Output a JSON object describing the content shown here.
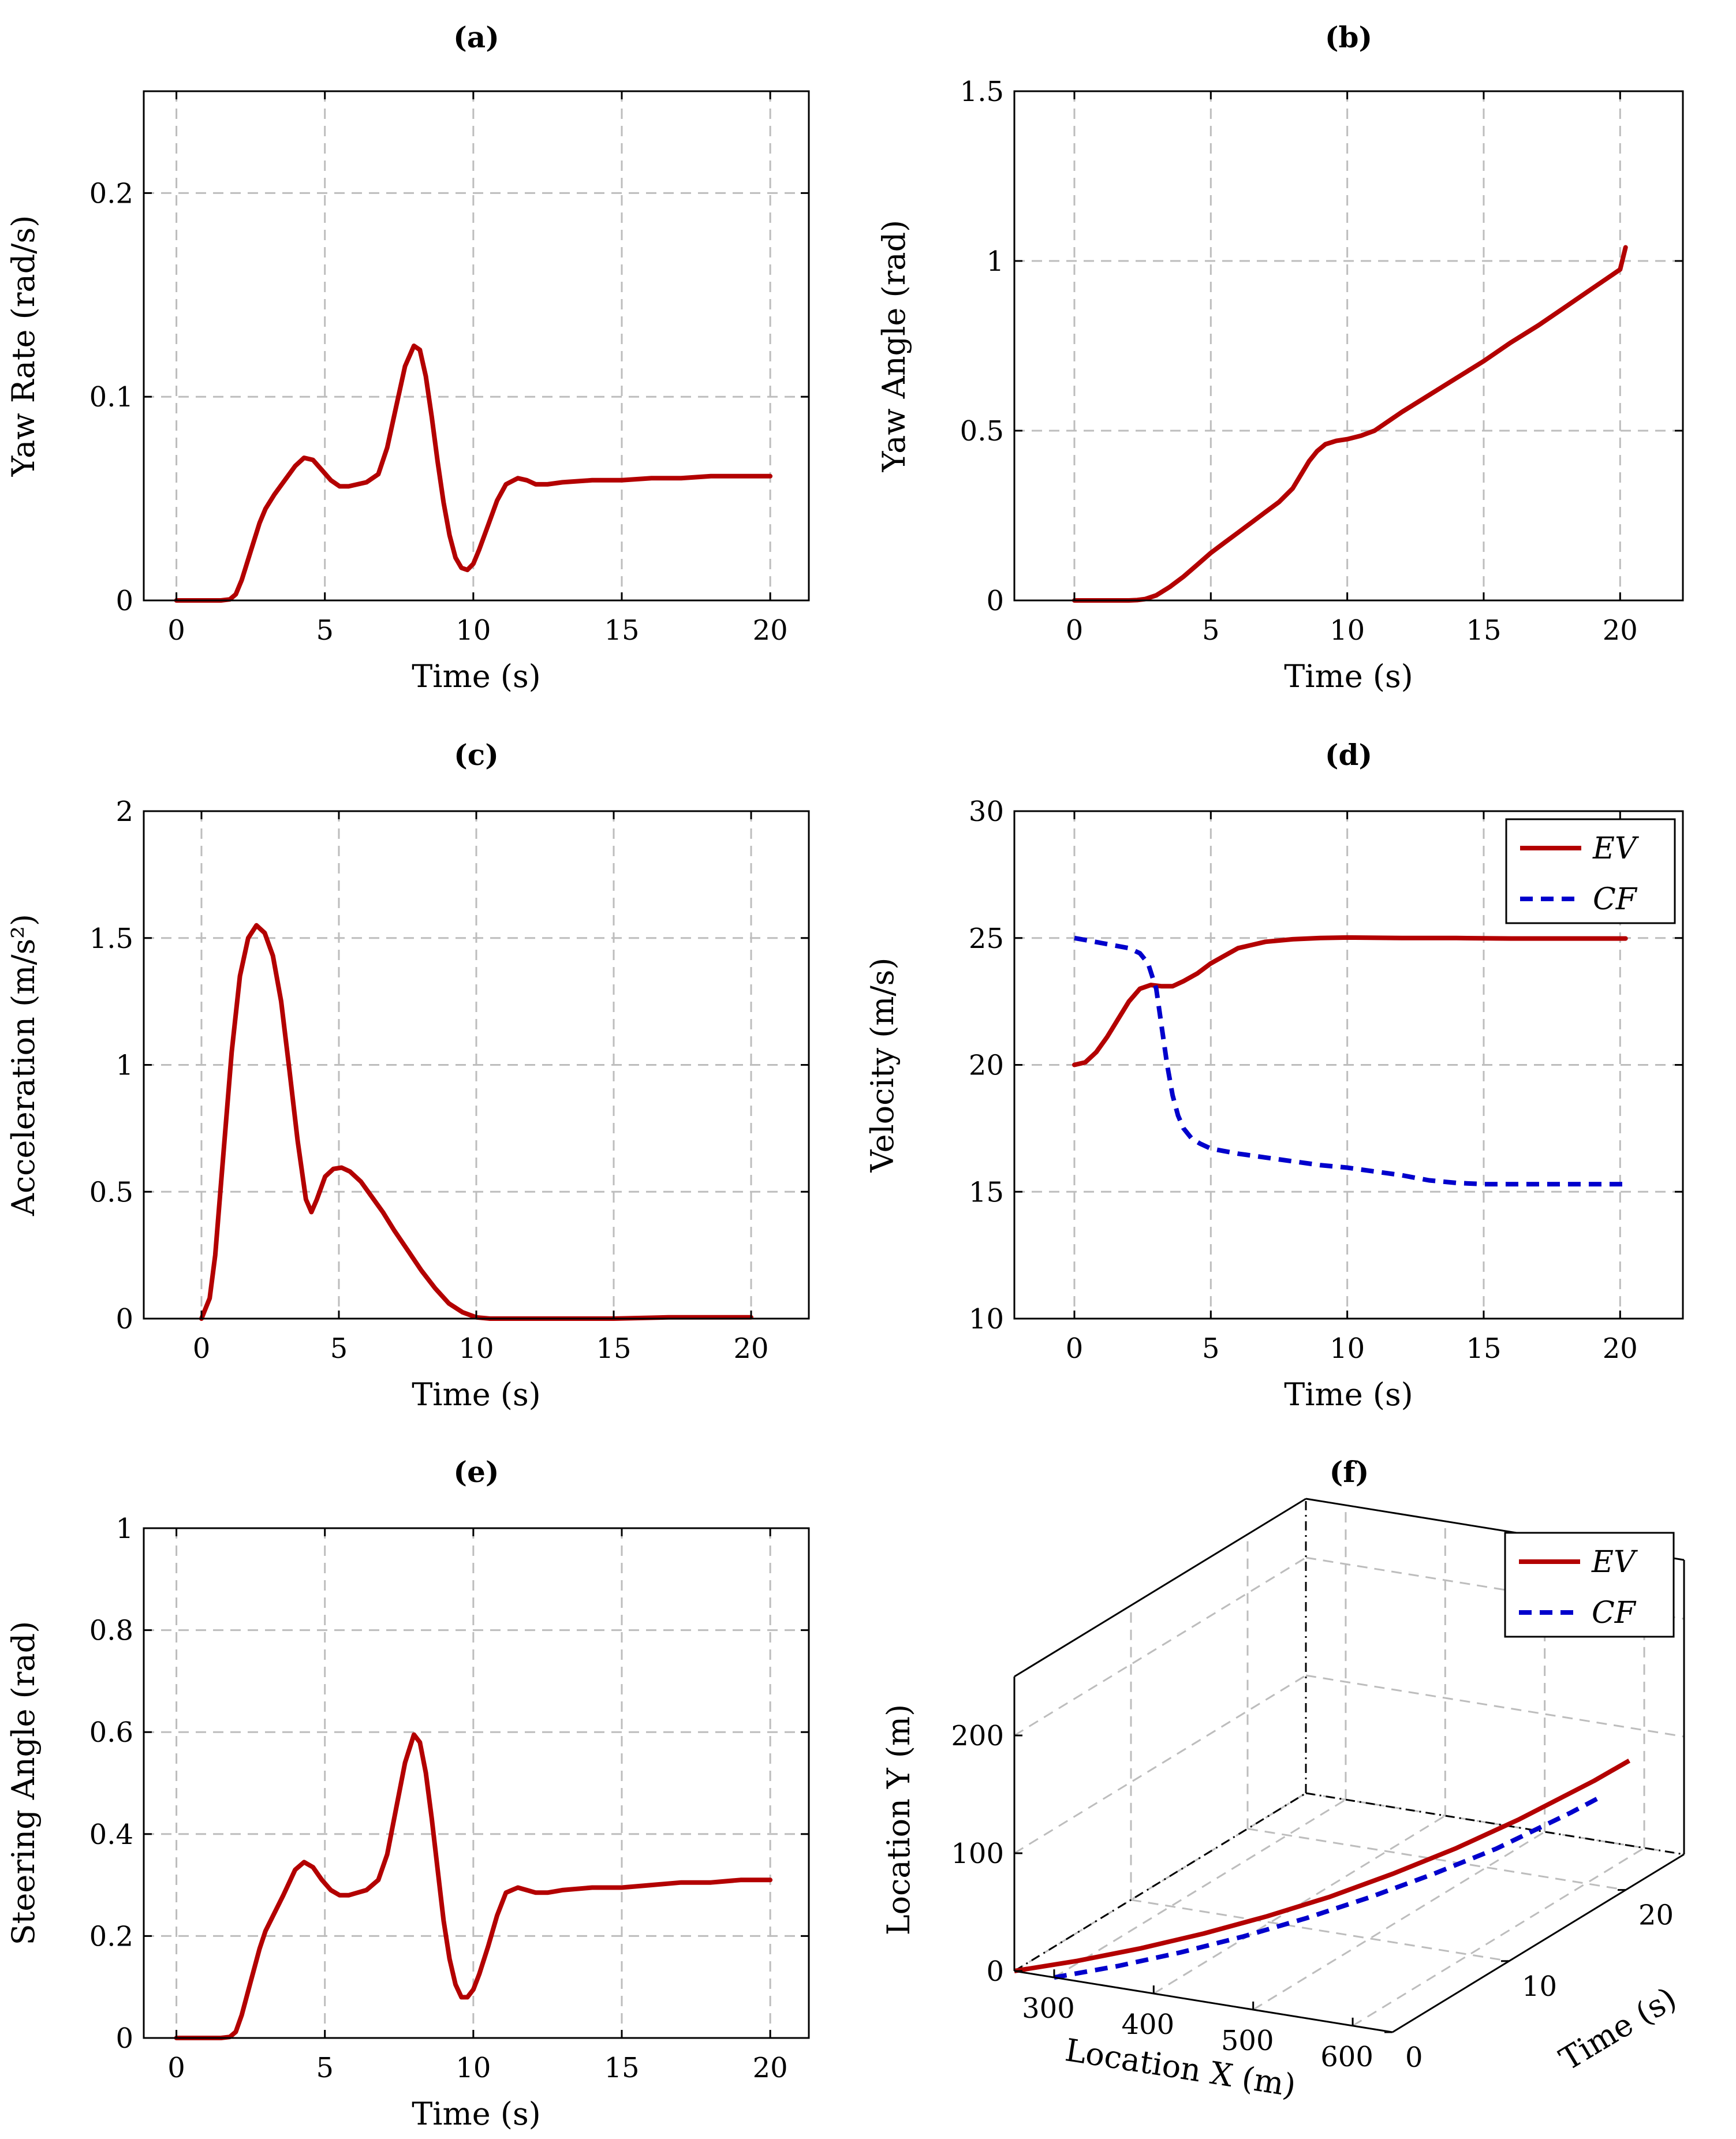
{
  "chart_data": [
    {
      "id": "a",
      "type": "line",
      "title": "(a)",
      "xlabel": "Time (s)",
      "ylabel": "Yaw Rate (rad/s)",
      "xlim": [
        -1.1,
        21.3
      ],
      "ylim": [
        0,
        0.25
      ],
      "xticks": [
        0,
        5,
        10,
        15,
        20
      ],
      "xtick_labels": [
        "0",
        "5",
        "10",
        "15",
        "20"
      ],
      "yticks": [
        0,
        0.1,
        0.2
      ],
      "ytick_labels": [
        "0",
        "0.1",
        "0.2"
      ],
      "series": [
        {
          "name": "EV",
          "color": "#b30000",
          "dash": false,
          "x": [
            0,
            1,
            1.5,
            1.8,
            2.0,
            2.2,
            2.5,
            2.8,
            3.0,
            3.3,
            3.6,
            4.0,
            4.3,
            4.6,
            4.9,
            5.2,
            5.5,
            5.8,
            6.1,
            6.4,
            6.8,
            7.1,
            7.4,
            7.7,
            8.0,
            8.2,
            8.4,
            8.6,
            8.8,
            9.0,
            9.2,
            9.4,
            9.6,
            9.8,
            10.0,
            10.2,
            10.5,
            10.8,
            11.1,
            11.5,
            11.8,
            12.1,
            12.5,
            13,
            14,
            15,
            16,
            17,
            18,
            19,
            20
          ],
          "y": [
            0,
            0,
            0,
            0.0005,
            0.003,
            0.01,
            0.024,
            0.038,
            0.045,
            0.052,
            0.058,
            0.066,
            0.07,
            0.069,
            0.064,
            0.059,
            0.056,
            0.056,
            0.057,
            0.058,
            0.062,
            0.075,
            0.095,
            0.115,
            0.125,
            0.123,
            0.11,
            0.09,
            0.068,
            0.048,
            0.032,
            0.021,
            0.016,
            0.015,
            0.018,
            0.025,
            0.037,
            0.049,
            0.057,
            0.06,
            0.059,
            0.057,
            0.057,
            0.058,
            0.059,
            0.059,
            0.06,
            0.06,
            0.061,
            0.061,
            0.061
          ]
        }
      ]
    },
    {
      "id": "b",
      "type": "line",
      "title": "(b)",
      "xlabel": "Time (s)",
      "ylabel": "Yaw Angle (rad)",
      "xlim": [
        -2.2,
        22.3
      ],
      "ylim": [
        0,
        1.5
      ],
      "xticks": [
        0,
        5,
        10,
        15,
        20
      ],
      "xtick_labels": [
        "0",
        "5",
        "10",
        "15",
        "20"
      ],
      "yticks": [
        0,
        0.5,
        1,
        1.5
      ],
      "ytick_labels": [
        "0",
        "0.5",
        "1",
        "1.5"
      ],
      "series": [
        {
          "name": "EV",
          "color": "#b30000",
          "dash": false,
          "x": [
            0,
            1,
            2,
            2.3,
            2.6,
            3.0,
            3.5,
            4.0,
            4.5,
            5.0,
            5.5,
            6.0,
            6.5,
            7.0,
            7.5,
            8.0,
            8.3,
            8.6,
            8.9,
            9.2,
            9.6,
            10.0,
            10.5,
            11.0,
            12.0,
            13.0,
            14.0,
            15.0,
            16.0,
            17.0,
            18.0,
            19.0,
            20.0,
            20.2
          ],
          "y": [
            0,
            0,
            0,
            0.001,
            0.004,
            0.015,
            0.04,
            0.07,
            0.105,
            0.14,
            0.17,
            0.2,
            0.23,
            0.26,
            0.29,
            0.33,
            0.37,
            0.41,
            0.44,
            0.46,
            0.47,
            0.475,
            0.485,
            0.5,
            0.555,
            0.605,
            0.655,
            0.705,
            0.76,
            0.81,
            0.865,
            0.92,
            0.975,
            1.04
          ]
        }
      ]
    },
    {
      "id": "c",
      "type": "line",
      "title": "(c)",
      "xlabel": "Time (s)",
      "ylabel": "Acceleration (m/s²)",
      "xlim": [
        -2.1,
        22.1
      ],
      "ylim": [
        0,
        2
      ],
      "xticks": [
        0,
        5,
        10,
        15,
        20
      ],
      "xtick_labels": [
        "0",
        "5",
        "10",
        "15",
        "20"
      ],
      "yticks": [
        0,
        0.5,
        1,
        1.5,
        2
      ],
      "ytick_labels": [
        "0",
        "0.5",
        "1",
        "1.5",
        "2"
      ],
      "series": [
        {
          "name": "EV",
          "color": "#b30000",
          "dash": false,
          "x": [
            0,
            0.3,
            0.5,
            0.8,
            1.1,
            1.4,
            1.7,
            2.0,
            2.3,
            2.6,
            2.9,
            3.2,
            3.5,
            3.8,
            4.0,
            4.2,
            4.5,
            4.8,
            5.1,
            5.4,
            5.8,
            6.2,
            6.6,
            7.0,
            7.5,
            8.0,
            8.5,
            9.0,
            9.5,
            10.0,
            10.5,
            11,
            12,
            15,
            17,
            20
          ],
          "y": [
            0,
            0.08,
            0.25,
            0.65,
            1.05,
            1.35,
            1.5,
            1.55,
            1.52,
            1.43,
            1.25,
            0.98,
            0.7,
            0.47,
            0.42,
            0.47,
            0.56,
            0.59,
            0.595,
            0.58,
            0.54,
            0.48,
            0.42,
            0.35,
            0.27,
            0.19,
            0.12,
            0.06,
            0.025,
            0.005,
            0,
            0,
            0,
            0,
            0.005,
            0.005
          ]
        }
      ]
    },
    {
      "id": "d",
      "type": "line",
      "title": "(d)",
      "xlabel": "Time (s)",
      "ylabel": "Velocity (m/s)",
      "xlim": [
        -2.2,
        22.3
      ],
      "ylim": [
        10,
        30
      ],
      "xticks": [
        0,
        5,
        10,
        15,
        20
      ],
      "xtick_labels": [
        "0",
        "5",
        "10",
        "15",
        "20"
      ],
      "yticks": [
        10,
        15,
        20,
        25,
        30
      ],
      "ytick_labels": [
        "10",
        "15",
        "20",
        "25",
        "30"
      ],
      "legend": {
        "position": "top-right",
        "entries": [
          "EV",
          "CF"
        ]
      },
      "series": [
        {
          "name": "EV",
          "color": "#b30000",
          "dash": false,
          "x": [
            0,
            0.4,
            0.8,
            1.2,
            1.6,
            2.0,
            2.4,
            2.8,
            3.2,
            3.6,
            4.0,
            4.5,
            5.0,
            5.5,
            6.0,
            7.0,
            8.0,
            9.0,
            10.0,
            12.0,
            14.0,
            16.0,
            18.0,
            20.0,
            20.2
          ],
          "y": [
            20,
            20.1,
            20.5,
            21.1,
            21.8,
            22.5,
            23,
            23.15,
            23.1,
            23.1,
            23.3,
            23.6,
            24,
            24.3,
            24.6,
            24.85,
            24.95,
            25,
            25.02,
            25,
            25,
            24.98,
            24.98,
            24.98,
            24.98
          ]
        },
        {
          "name": "CF",
          "color": "#0000cc",
          "dash": true,
          "x": [
            0,
            0.5,
            1.0,
            1.5,
            2.0,
            2.4,
            2.7,
            3.0,
            3.2,
            3.4,
            3.6,
            3.8,
            4.0,
            4.3,
            4.6,
            5.0,
            6.0,
            7.0,
            8.0,
            9.0,
            10.0,
            11.0,
            12.0,
            13.0,
            14.0,
            15.0,
            16.0,
            17.0,
            18.0,
            19.0,
            20.2
          ],
          "y": [
            25,
            24.9,
            24.8,
            24.7,
            24.6,
            24.4,
            24,
            23,
            21.5,
            20,
            18.8,
            18,
            17.5,
            17.1,
            16.9,
            16.7,
            16.5,
            16.35,
            16.2,
            16.05,
            15.95,
            15.8,
            15.65,
            15.45,
            15.35,
            15.3,
            15.3,
            15.3,
            15.3,
            15.3,
            15.3
          ]
        }
      ]
    },
    {
      "id": "e",
      "type": "line",
      "title": "(e)",
      "xlabel": "Time (s)",
      "ylabel": "Steering Angle (rad)",
      "xlim": [
        -1.1,
        21.3
      ],
      "ylim": [
        0,
        1
      ],
      "xticks": [
        0,
        5,
        10,
        15,
        20
      ],
      "xtick_labels": [
        "0",
        "5",
        "10",
        "15",
        "20"
      ],
      "yticks": [
        0,
        0.2,
        0.4,
        0.6,
        0.8,
        1
      ],
      "ytick_labels": [
        "0",
        "0.2",
        "0.4",
        "0.6",
        "0.8",
        "1"
      ],
      "series": [
        {
          "name": "EV",
          "color": "#b30000",
          "dash": false,
          "x": [
            0,
            1,
            1.5,
            1.8,
            2.0,
            2.2,
            2.5,
            2.8,
            3.0,
            3.3,
            3.6,
            4.0,
            4.3,
            4.6,
            4.9,
            5.2,
            5.5,
            5.8,
            6.1,
            6.4,
            6.8,
            7.1,
            7.4,
            7.7,
            8.0,
            8.2,
            8.4,
            8.6,
            8.8,
            9.0,
            9.2,
            9.4,
            9.6,
            9.8,
            10.0,
            10.2,
            10.5,
            10.8,
            11.1,
            11.5,
            11.8,
            12.1,
            12.5,
            13,
            14,
            15,
            16,
            17,
            18,
            19,
            20
          ],
          "y": [
            0,
            0,
            0,
            0.002,
            0.012,
            0.045,
            0.11,
            0.175,
            0.21,
            0.245,
            0.28,
            0.33,
            0.345,
            0.335,
            0.31,
            0.29,
            0.28,
            0.28,
            0.285,
            0.29,
            0.31,
            0.36,
            0.45,
            0.54,
            0.595,
            0.58,
            0.52,
            0.43,
            0.33,
            0.23,
            0.155,
            0.105,
            0.08,
            0.08,
            0.095,
            0.125,
            0.18,
            0.24,
            0.285,
            0.295,
            0.29,
            0.285,
            0.285,
            0.29,
            0.295,
            0.295,
            0.3,
            0.305,
            0.305,
            0.31,
            0.31
          ]
        }
      ]
    },
    {
      "id": "f",
      "type": "line",
      "title": "(f)",
      "xlabel": "Location X (m)",
      "ylabel": "Location Y (m)",
      "zlabel": "Time (s)",
      "xlim": [
        260,
        640
      ],
      "ylim": [
        0,
        250
      ],
      "zlim": [
        0,
        25
      ],
      "xticks": [
        300,
        400,
        500,
        600
      ],
      "xtick_labels": [
        "300",
        "400",
        "500",
        "600"
      ],
      "yticks": [
        0,
        100,
        200
      ],
      "ytick_labels": [
        "0",
        "100",
        "200"
      ],
      "zticks": [
        0,
        10,
        20
      ],
      "ztick_labels": [
        "0",
        "10",
        "20"
      ],
      "legend": {
        "position": "top-right",
        "entries": [
          "EV",
          "CF"
        ]
      },
      "series": [
        {
          "name": "EV",
          "color": "#b30000",
          "dash": false,
          "x": [
            260,
            300,
            340,
            380,
            420,
            460,
            500,
            540,
            580,
            620,
            640
          ],
          "y": [
            0,
            2,
            6,
            12,
            20,
            30,
            43,
            58,
            76,
            96,
            108
          ],
          "z": [
            0,
            2,
            4,
            6,
            8,
            10,
            12,
            14,
            16,
            19,
            20.3
          ]
        },
        {
          "name": "CF",
          "color": "#0000cc",
          "dash": true,
          "x": [
            300,
            340,
            380,
            420,
            460,
            500,
            540,
            580,
            620,
            634
          ],
          "y": [
            0,
            3,
            8,
            15,
            24,
            35,
            48,
            63,
            81,
            88
          ],
          "z": [
            0,
            2,
            4,
            6,
            8,
            10,
            12,
            14,
            17,
            18.5
          ]
        }
      ]
    }
  ]
}
